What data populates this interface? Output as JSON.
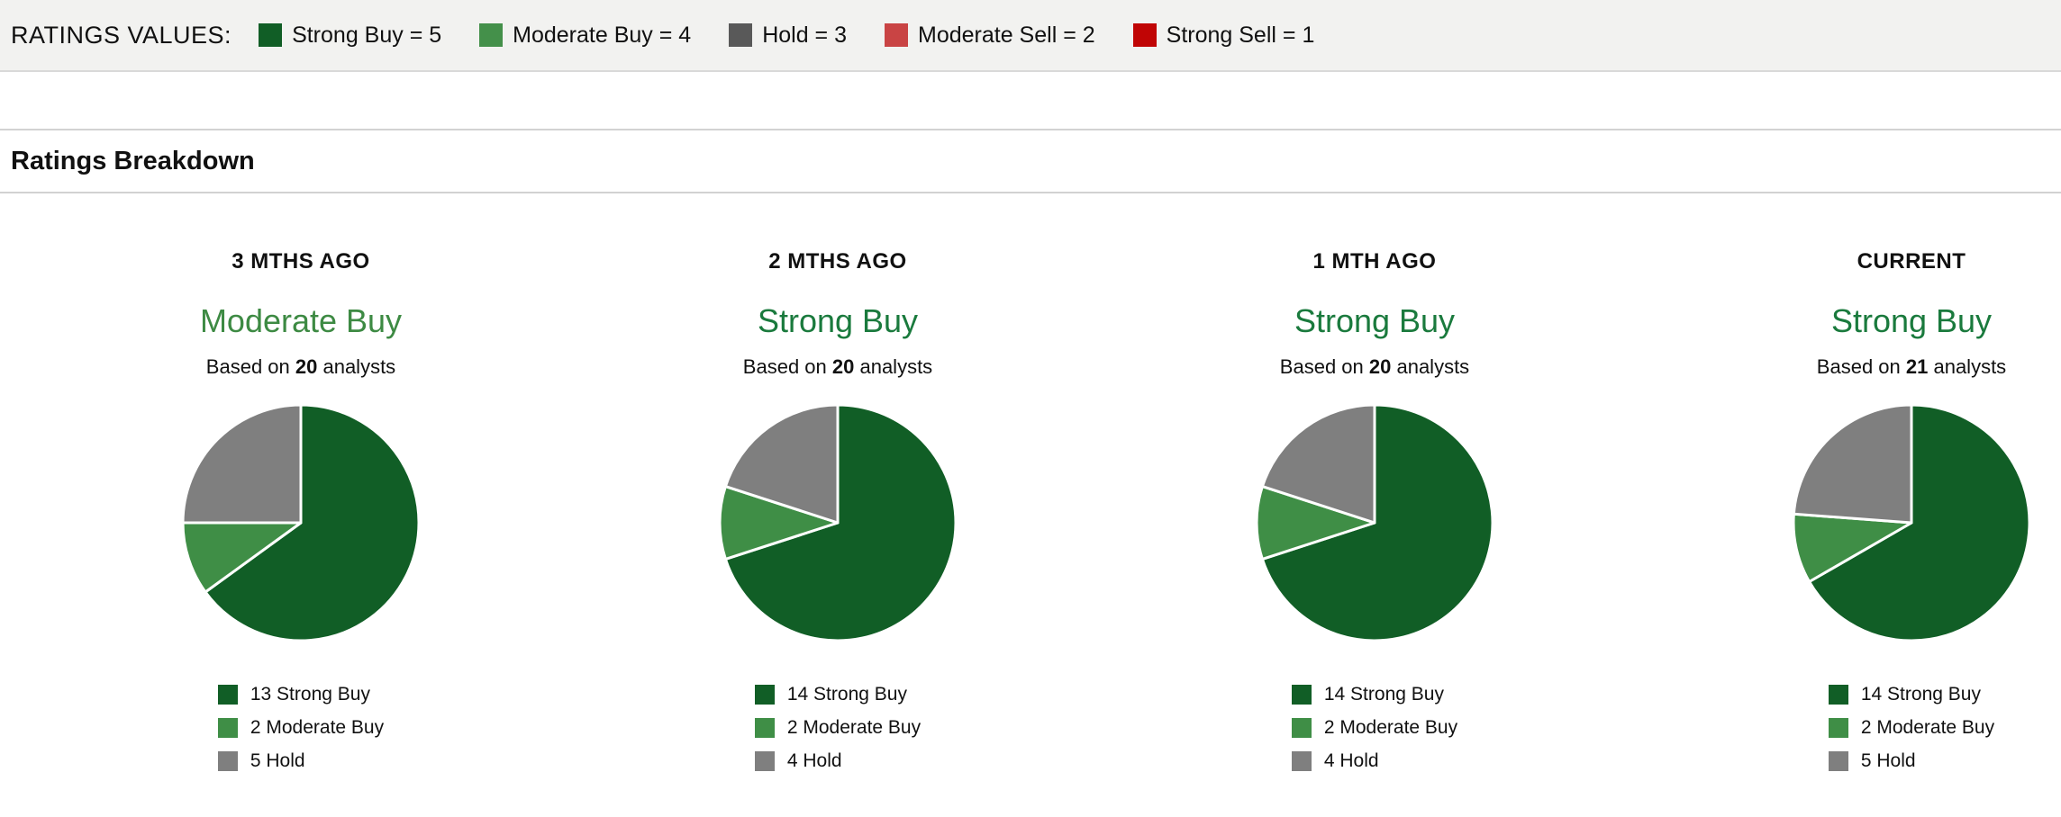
{
  "ratings_values_bar": {
    "label": "RATINGS VALUES:",
    "items": [
      {
        "label": "Strong Buy = 5",
        "color": "#115e26"
      },
      {
        "label": "Moderate Buy = 4",
        "color": "#44904a"
      },
      {
        "label": "Hold = 3",
        "color": "#595959"
      },
      {
        "label": "Moderate Sell = 2",
        "color": "#c94444"
      },
      {
        "label": "Strong Sell = 1",
        "color": "#c00505"
      }
    ]
  },
  "section": {
    "title": "Ratings Breakdown"
  },
  "chart_data": [
    {
      "type": "pie",
      "title": "3 MTHS AGO",
      "consensus": "Moderate Buy",
      "consensus_color": "#3d8a43",
      "based_on": {
        "prefix": "Based on ",
        "count": "20",
        "suffix": " analysts"
      },
      "slices": [
        {
          "label": "Strong Buy",
          "value": 13,
          "color": "#115e26",
          "legend_label": "13 Strong Buy"
        },
        {
          "label": "Moderate Buy",
          "value": 2,
          "color": "#3f8e46",
          "legend_label": "2 Moderate Buy"
        },
        {
          "label": "Hold",
          "value": 5,
          "color": "#7f7f7f",
          "legend_label": "5 Hold"
        }
      ]
    },
    {
      "type": "pie",
      "title": "2 MTHS AGO",
      "consensus": "Strong Buy",
      "consensus_color": "#1a7a3d",
      "based_on": {
        "prefix": "Based on ",
        "count": "20",
        "suffix": " analysts"
      },
      "slices": [
        {
          "label": "Strong Buy",
          "value": 14,
          "color": "#115e26",
          "legend_label": "14 Strong Buy"
        },
        {
          "label": "Moderate Buy",
          "value": 2,
          "color": "#3f8e46",
          "legend_label": "2 Moderate Buy"
        },
        {
          "label": "Hold",
          "value": 4,
          "color": "#7f7f7f",
          "legend_label": "4 Hold"
        }
      ]
    },
    {
      "type": "pie",
      "title": "1 MTH AGO",
      "consensus": "Strong Buy",
      "consensus_color": "#1a7a3d",
      "based_on": {
        "prefix": "Based on ",
        "count": "20",
        "suffix": " analysts"
      },
      "slices": [
        {
          "label": "Strong Buy",
          "value": 14,
          "color": "#115e26",
          "legend_label": "14 Strong Buy"
        },
        {
          "label": "Moderate Buy",
          "value": 2,
          "color": "#3f8e46",
          "legend_label": "2 Moderate Buy"
        },
        {
          "label": "Hold",
          "value": 4,
          "color": "#7f7f7f",
          "legend_label": "4 Hold"
        }
      ]
    },
    {
      "type": "pie",
      "title": "CURRENT",
      "consensus": "Strong Buy",
      "consensus_color": "#1a7a3d",
      "based_on": {
        "prefix": "Based on ",
        "count": "21",
        "suffix": " analysts"
      },
      "slices": [
        {
          "label": "Strong Buy",
          "value": 14,
          "color": "#115e26",
          "legend_label": "14 Strong Buy"
        },
        {
          "label": "Moderate Buy",
          "value": 2,
          "color": "#3f8e46",
          "legend_label": "2 Moderate Buy"
        },
        {
          "label": "Hold",
          "value": 5,
          "color": "#7f7f7f",
          "legend_label": "5 Hold"
        }
      ]
    }
  ]
}
